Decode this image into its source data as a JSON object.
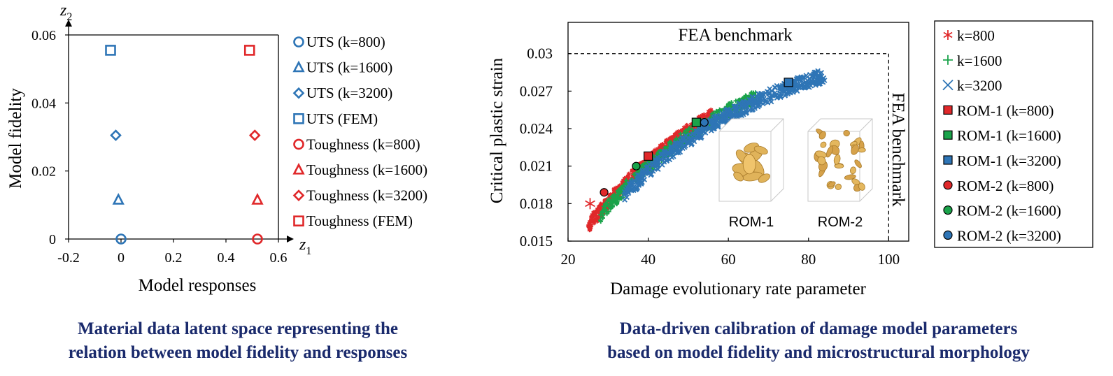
{
  "chart_data": [
    {
      "type": "scatter",
      "xlabel": "Model responses",
      "ylabel": "Model fidelity",
      "x_axis_symbol": {
        "base": "z",
        "sub": "1"
      },
      "y_axis_symbol": {
        "base": "z",
        "sub": "2"
      },
      "xlim": [
        -0.2,
        0.6
      ],
      "ylim": [
        0,
        0.06
      ],
      "xticks": [
        "-0.2",
        "0",
        "0.2",
        "0.4",
        "0.6"
      ],
      "yticks": [
        "0",
        "0.02",
        "0.04",
        "0.06"
      ],
      "grid": false,
      "legend_position": "right",
      "series": [
        {
          "name": "UTS (k=800)",
          "marker": "circle",
          "color": "#2e75b6",
          "points": [
            [
              0.0,
              0.0
            ]
          ]
        },
        {
          "name": "UTS (k=1600)",
          "marker": "triangle",
          "color": "#2e75b6",
          "points": [
            [
              -0.01,
              0.0115
            ]
          ]
        },
        {
          "name": "UTS (k=3200)",
          "marker": "diamond",
          "color": "#2e75b6",
          "points": [
            [
              -0.02,
              0.0305
            ]
          ]
        },
        {
          "name": "UTS (FEM)",
          "marker": "square",
          "color": "#2e75b6",
          "points": [
            [
              -0.04,
              0.0555
            ]
          ]
        },
        {
          "name": "Toughness (k=800)",
          "marker": "circle",
          "color": "#e0282a",
          "points": [
            [
              0.52,
              0.0
            ]
          ]
        },
        {
          "name": "Toughness (k=1600)",
          "marker": "triangle",
          "color": "#e0282a",
          "points": [
            [
              0.52,
              0.0115
            ]
          ]
        },
        {
          "name": "Toughness (k=3200)",
          "marker": "diamond",
          "color": "#e0282a",
          "points": [
            [
              0.51,
              0.0305
            ]
          ]
        },
        {
          "name": "Toughness (FEM)",
          "marker": "square",
          "color": "#e0282a",
          "points": [
            [
              0.49,
              0.0555
            ]
          ]
        }
      ]
    },
    {
      "type": "scatter",
      "xlabel": "Damage evolutionary rate parameter",
      "ylabel": "Critical plastic strain",
      "xlim": [
        20,
        105
      ],
      "ylim": [
        0.015,
        0.0325
      ],
      "xticks": [
        "20",
        "40",
        "60",
        "80",
        "100"
      ],
      "yticks": [
        "0.015",
        "0.018",
        "0.021",
        "0.024",
        "0.027",
        "0.03"
      ],
      "grid": false,
      "legend_position": "right (boxed)",
      "benchmark_lines": {
        "x": 100,
        "y": 0.03,
        "label_horizontal": "FEA benchmark",
        "label_vertical": "FEA benchmark"
      },
      "bands": [
        {
          "series": "k=800",
          "x_range": [
            25,
            56
          ],
          "color": "#e0282a"
        },
        {
          "series": "k=1600",
          "x_range": [
            28,
            67
          ],
          "color": "#1aa34a"
        },
        {
          "series": "k=3200",
          "x_range": [
            34,
            84
          ],
          "color": "#2e75b6"
        }
      ],
      "series": [
        {
          "name": "k=800",
          "marker": "asterisk",
          "color": "#e0282a"
        },
        {
          "name": "k=1600",
          "marker": "plus",
          "color": "#1aa34a"
        },
        {
          "name": "k=3200",
          "marker": "x",
          "color": "#2e75b6"
        },
        {
          "name": "ROM-1 (k=800)",
          "marker": "square",
          "color": "#e0282a",
          "points": [
            [
              40,
              0.0218
            ]
          ]
        },
        {
          "name": "ROM-1 (k=1600)",
          "marker": "square",
          "color": "#1aa34a",
          "points": [
            [
              52,
              0.0245
            ]
          ]
        },
        {
          "name": "ROM-1 (k=3200)",
          "marker": "square",
          "color": "#2e75b6",
          "points": [
            [
              75,
              0.0277
            ]
          ]
        },
        {
          "name": "ROM-2 (k=800)",
          "marker": "circle",
          "color": "#e0282a",
          "points": [
            [
              29,
              0.0189
            ]
          ]
        },
        {
          "name": "ROM-2 (k=1600)",
          "marker": "circle",
          "color": "#1aa34a",
          "points": [
            [
              37,
              0.021
            ]
          ]
        },
        {
          "name": "ROM-2 (k=3200)",
          "marker": "circle",
          "color": "#2e75b6",
          "points": [
            [
              54,
              0.0245
            ]
          ]
        }
      ],
      "annotations": [
        {
          "text": "ROM-1",
          "kind": "microstructure-inset"
        },
        {
          "text": "ROM-2",
          "kind": "microstructure-inset"
        }
      ]
    }
  ],
  "captions": {
    "left": [
      "Material data latent space representing the",
      "relation between model fidelity and responses"
    ],
    "right": [
      "Data-driven calibration of damage model parameters",
      "based on model fidelity and microstructural morphology"
    ]
  }
}
